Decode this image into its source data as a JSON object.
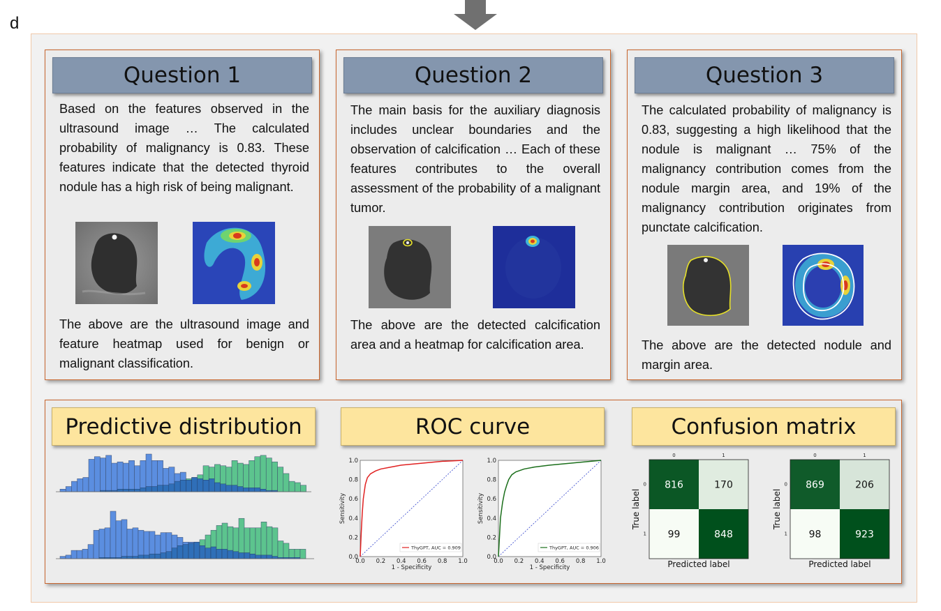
{
  "panel_label": "d",
  "questions": [
    {
      "title": "Question 1",
      "body": "Based on the features observed in the ultrasound image … The calculated probability of malignancy is 0.83. These features indicate that the detected thyroid nodule has a high risk of being malignant.",
      "caption": "The above are the ultrasound image and feature heatmap used for benign or malignant classification."
    },
    {
      "title": "Question 2",
      "body": "The main basis for the auxiliary diagnosis includes unclear boundaries and the observation of calcification … Each of these features contributes to the overall assessment of the probability of a malignant tumor.",
      "caption": "The above are the detected calcification area and a heatmap for calcification area."
    },
    {
      "title": "Question 3",
      "body": "The calculated probability of malignancy is 0.83, suggesting a high likelihood that the nodule is malignant … 75% of the malignancy contribution comes from the nodule margin area, and 19% of the malignancy contribution originates from punctate calcification.",
      "caption": "The above are the detected nodule and margin area."
    }
  ],
  "sections": {
    "predictive": "Predictive distribution",
    "roc": "ROC curve",
    "confusion": "Confusion matrix"
  },
  "colors": {
    "benign": "#5b8ee0",
    "malignant": "#5cc48e",
    "overlap": "#2f6fb8",
    "roc1": "#e02020",
    "roc2": "#1a6e1a"
  },
  "chart_data": [
    {
      "type": "bar",
      "title": "Predictive distribution (top)",
      "series": [
        {
          "name": "benign",
          "values": [
            2,
            4,
            8,
            10,
            11,
            25,
            27,
            26,
            28,
            22,
            23,
            22,
            24,
            20,
            24,
            29,
            24,
            24,
            18,
            19,
            14,
            15,
            9,
            11,
            10,
            9,
            10,
            7,
            6,
            5,
            5,
            4,
            3,
            3,
            3,
            2,
            1,
            1,
            0,
            0,
            0,
            0,
            0
          ]
        },
        {
          "name": "malignant",
          "values": [
            0,
            0,
            0,
            0,
            0,
            0,
            0,
            1,
            1,
            1,
            2,
            2,
            2,
            2,
            3,
            4,
            4,
            5,
            5,
            6,
            8,
            9,
            10,
            11,
            13,
            20,
            19,
            21,
            20,
            19,
            24,
            22,
            21,
            24,
            27,
            28,
            26,
            23,
            19,
            14,
            8,
            7,
            5
          ]
        }
      ]
    },
    {
      "type": "bar",
      "title": "Predictive distribution (bottom)",
      "series": [
        {
          "name": "benign",
          "values": [
            2,
            3,
            7,
            7,
            8,
            12,
            24,
            25,
            26,
            40,
            32,
            33,
            25,
            26,
            24,
            23,
            23,
            20,
            22,
            22,
            20,
            18,
            14,
            14,
            14,
            11,
            9,
            10,
            8,
            8,
            7,
            6,
            5,
            5,
            4,
            3,
            3,
            3,
            2,
            1,
            1,
            1,
            1,
            0
          ]
        },
        {
          "name": "malignant",
          "values": [
            0,
            0,
            0,
            0,
            0,
            0,
            0,
            1,
            1,
            1,
            1,
            2,
            2,
            2,
            3,
            3,
            4,
            4,
            5,
            6,
            9,
            11,
            12,
            13,
            14,
            16,
            20,
            24,
            28,
            30,
            27,
            26,
            34,
            26,
            26,
            26,
            31,
            27,
            26,
            15,
            13,
            8,
            8,
            8
          ]
        }
      ]
    },
    {
      "type": "line",
      "title": "ROC curve 1",
      "xlabel": "1 - Specificity",
      "ylabel": "Sensitivity",
      "xlim": [
        0,
        1
      ],
      "ylim": [
        0,
        1
      ],
      "ticks": [
        "0.0",
        "0.2",
        "0.4",
        "0.6",
        "0.8",
        "1.0"
      ],
      "legend": "ThyGPT, AUC = 0.909",
      "x": [
        0,
        0.01,
        0.02,
        0.03,
        0.05,
        0.07,
        0.1,
        0.15,
        0.2,
        0.3,
        0.4,
        0.5,
        0.6,
        0.7,
        0.8,
        0.9,
        1.0
      ],
      "y": [
        0,
        0.25,
        0.45,
        0.6,
        0.75,
        0.82,
        0.86,
        0.89,
        0.91,
        0.93,
        0.95,
        0.96,
        0.97,
        0.98,
        0.99,
        0.995,
        1.0
      ]
    },
    {
      "type": "line",
      "title": "ROC curve 2",
      "xlabel": "1 - Specificity",
      "ylabel": "Sensitivity",
      "xlim": [
        0,
        1
      ],
      "ylim": [
        0,
        1
      ],
      "ticks": [
        "0.0",
        "0.2",
        "0.4",
        "0.6",
        "0.8",
        "1.0"
      ],
      "legend": "ThyGPT, AUC = 0.906",
      "x": [
        0,
        0.01,
        0.02,
        0.04,
        0.06,
        0.08,
        0.1,
        0.13,
        0.17,
        0.25,
        0.35,
        0.5,
        0.6,
        0.7,
        0.8,
        0.9,
        1.0
      ],
      "y": [
        0,
        0.2,
        0.4,
        0.56,
        0.67,
        0.74,
        0.8,
        0.85,
        0.88,
        0.91,
        0.93,
        0.95,
        0.96,
        0.97,
        0.98,
        0.99,
        1.0
      ]
    },
    {
      "type": "heatmap",
      "title": "Confusion matrix 1",
      "xlabel": "Predicted label",
      "ylabel": "True label",
      "labels": [
        "0",
        "1"
      ],
      "values": [
        [
          816,
          170
        ],
        [
          99,
          848
        ]
      ],
      "cell_text": [
        "816",
        "170",
        "99",
        "848"
      ]
    },
    {
      "type": "heatmap",
      "title": "Confusion matrix 2",
      "xlabel": "Predicted label",
      "ylabel": "True label",
      "labels": [
        "0",
        "1"
      ],
      "values": [
        [
          869,
          206
        ],
        [
          98,
          923
        ]
      ],
      "cell_text": [
        "869",
        "206",
        "98",
        "923"
      ]
    }
  ]
}
